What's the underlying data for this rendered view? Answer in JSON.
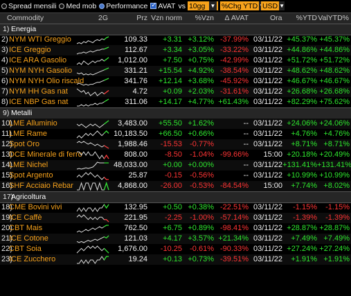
{
  "toolbar": {
    "items": [
      {
        "type": "radio",
        "label": "Spread mensili",
        "on": false
      },
      {
        "type": "radio",
        "label": "Med mob",
        "on": false
      },
      {
        "type": "radio",
        "label": "Performance",
        "on": true
      },
      {
        "type": "check",
        "label": "AVAT",
        "on": true
      }
    ],
    "vs_label": "vs",
    "period_value": "10gg",
    "chg_value": "%Chg YTD",
    "currency_value": "USD"
  },
  "columns": [
    "Commodity",
    "2G",
    "Prz",
    "Vzn norm",
    "%Vzn",
    "Δ AVAT",
    "Ora",
    "%YTD",
    "ValYTD%"
  ],
  "sections": [
    {
      "num": "1)",
      "name": "Energia",
      "rows": [
        {
          "num": "2)",
          "name": "NYM WTI Greggio",
          "prz": "109.33",
          "vzn": "+3.31",
          "pct": "+3.12%",
          "avat": "-37.99%",
          "ora": "03/11/22",
          "ytd": "+45.37%",
          "val": "+45.37%",
          "spark": [
            5,
            6,
            5,
            7,
            6,
            8,
            7,
            6,
            8,
            9,
            8,
            10,
            9,
            11,
            12
          ]
        },
        {
          "num": "3)",
          "name": "ICE Greggio",
          "prz": "112.67",
          "vzn": "+3.34",
          "pct": "+3.05%",
          "avat": "-33.22%",
          "ora": "03/11/22",
          "ytd": "+44.86%",
          "val": "+44.86%",
          "spark": [
            5,
            6,
            6,
            7,
            6,
            7,
            8,
            7,
            8,
            9,
            9,
            10,
            10,
            11,
            12
          ]
        },
        {
          "num": "4)",
          "name": "ICE ARA Gasolio",
          "prz": "1,012.00",
          "vzn": "+7.50",
          "pct": "+0.75%",
          "avat": "-42.99%",
          "ora": "03/11/22",
          "ytd": "+51.72%",
          "val": "+51.72%",
          "spark": [
            6,
            7,
            6,
            8,
            7,
            6,
            7,
            8,
            7,
            8,
            8,
            9,
            8,
            9,
            10
          ]
        },
        {
          "num": "5)",
          "name": "NYM NYH Gasolio",
          "prz": "331.21",
          "vzn": "+15.54",
          "pct": "+4.92%",
          "avat": "-38.54%",
          "ora": "03/11/22",
          "ytd": "+48.62%",
          "val": "+48.62%",
          "spark": [
            7,
            6,
            7,
            5,
            6,
            5,
            6,
            5,
            6,
            7,
            8,
            9,
            10,
            11,
            12
          ]
        },
        {
          "num": "6)",
          "name": "NYM NYH Olio riscald",
          "prz": "341.76",
          "vzn": "+12.14",
          "pct": "+3.68%",
          "avat": "-45.92%",
          "ora": "03/11/22",
          "ytd": "+46.67%",
          "val": "+46.67%",
          "spark": [
            6,
            7,
            6,
            5,
            6,
            5,
            6,
            6,
            7,
            8,
            8,
            9,
            10,
            11,
            12
          ]
        },
        {
          "num": "7)",
          "name": "NYM HH Gas nat",
          "prz": "4.72",
          "vzn": "+0.09",
          "pct": "+2.03%",
          "avat": "-31.61%",
          "ora": "03/11/22",
          "ytd": "+26.68%",
          "val": "+26.68%",
          "spark": [
            10,
            9,
            8,
            9,
            7,
            8,
            6,
            7,
            8,
            6,
            7,
            8,
            7,
            8,
            9
          ]
        },
        {
          "num": "8)",
          "name": "ICE NBP Gas nat",
          "prz": "311.06",
          "vzn": "+14.17",
          "pct": "+4.77%",
          "avat": "+61.43%",
          "ora": "03/11/22",
          "ytd": "+82.29%",
          "val": "+75.62%",
          "spark": [
            6,
            6,
            7,
            6,
            7,
            6,
            7,
            7,
            8,
            7,
            8,
            8,
            9,
            10,
            11
          ]
        }
      ]
    },
    {
      "num": "9)",
      "name": "Metalli",
      "rows": [
        {
          "num": "10)",
          "name": "LME Alluminio",
          "prz": "3,483.00",
          "vzn": "+55.50",
          "pct": "+1.62%",
          "avat": "--",
          "ora": "03/11/22",
          "ytd": "+24.06%",
          "val": "+24.06%",
          "spark": [
            8,
            7,
            8,
            7,
            6,
            7,
            8,
            7,
            8,
            7,
            6,
            7,
            8,
            9,
            10
          ]
        },
        {
          "num": "11)",
          "name": "LME Rame",
          "prz": "10,183.50",
          "vzn": "+66.50",
          "pct": "+0.66%",
          "avat": "--",
          "ora": "03/11/22",
          "ytd": "+4.76%",
          "val": "+4.76%",
          "spark": [
            7,
            8,
            7,
            8,
            9,
            8,
            9,
            8,
            9,
            10,
            9,
            8,
            9,
            10,
            9
          ]
        },
        {
          "num": "12)",
          "name": "Spot Oro",
          "prz": "1,988.46",
          "vzn": "-15.53",
          "pct": "-0.77%",
          "avat": "--",
          "ora": "03/11/22",
          "ytd": "+8.71%",
          "val": "+8.71%",
          "spark": [
            10,
            11,
            10,
            11,
            10,
            9,
            10,
            9,
            8,
            9,
            8,
            7,
            8,
            7,
            6
          ]
        },
        {
          "num": "13)",
          "name": "DCE Minerale di ferro",
          "prz": "808.00",
          "vzn": "-8.50",
          "pct": "-1.04%",
          "avat": "-99.66%",
          "ora": "15:00",
          "ytd": "+20.18%",
          "val": "+20.49%",
          "spark": [
            9,
            9,
            8,
            9,
            8,
            9,
            8,
            8,
            9,
            8,
            7,
            8,
            7,
            8,
            7
          ]
        },
        {
          "num": "14)",
          "name": "LME Nichel",
          "prz": "48,033.00",
          "vzn": "+0.00",
          "pct": "+0.00%",
          "avat": "--",
          "ora": "03/11/22",
          "ytd": "+131.41%",
          "val": "+131.41%",
          "spark": [
            3,
            4,
            3,
            4,
            5,
            4,
            5,
            6,
            9,
            13,
            12,
            12,
            12,
            12,
            12
          ]
        },
        {
          "num": "15)",
          "name": "Spot Argento",
          "prz": "25.87",
          "vzn": "-0.15",
          "pct": "-0.56%",
          "avat": "--",
          "ora": "03/11/22",
          "ytd": "+10.99%",
          "val": "+10.99%",
          "spark": [
            9,
            10,
            9,
            10,
            11,
            10,
            11,
            10,
            9,
            10,
            9,
            8,
            9,
            8,
            8
          ]
        },
        {
          "num": "16)",
          "name": "SHF Acciaio Rebar",
          "prz": "4,868.00",
          "vzn": "-26.00",
          "pct": "-0.53%",
          "avat": "-84.54%",
          "ora": "15:00",
          "ytd": "+7.74%",
          "val": "+8.02%",
          "spark": [
            8,
            8,
            9,
            8,
            9,
            9,
            8,
            9,
            9,
            8,
            9,
            8,
            8,
            9,
            8
          ]
        }
      ]
    },
    {
      "num": "17)",
      "name": "Agricoltura",
      "rows": [
        {
          "num": "18)",
          "name": "CME Bovini vivi",
          "prz": "132.95",
          "vzn": "+0.50",
          "pct": "+0.38%",
          "avat": "-22.51%",
          "ora": "03/11/22",
          "ytd": "-1.15%",
          "val": "-1.15%",
          "spark": [
            8,
            9,
            8,
            9,
            8,
            9,
            9,
            8,
            9,
            8,
            9,
            9,
            10,
            9,
            10
          ]
        },
        {
          "num": "19)",
          "name": "ICE Caffè",
          "prz": "221.95",
          "vzn": "-2.25",
          "pct": "-1.00%",
          "avat": "-57.14%",
          "ora": "03/11/22",
          "ytd": "-1.39%",
          "val": "-1.39%",
          "spark": [
            9,
            10,
            9,
            10,
            9,
            8,
            9,
            8,
            9,
            8,
            9,
            9,
            8,
            8,
            7
          ]
        },
        {
          "num": "20)",
          "name": "CBT Mais",
          "prz": "762.50",
          "vzn": "+6.75",
          "pct": "+0.89%",
          "avat": "-98.41%",
          "ora": "03/11/22",
          "ytd": "+28.87%",
          "val": "+28.87%",
          "spark": [
            6,
            7,
            6,
            7,
            8,
            7,
            8,
            9,
            8,
            9,
            10,
            9,
            10,
            11,
            11
          ]
        },
        {
          "num": "21)",
          "name": "ICE Cotone",
          "prz": "121.03",
          "vzn": "+4.17",
          "pct": "+3.57%",
          "avat": "+21.34%",
          "ora": "03/11/22",
          "ytd": "+7.49%",
          "val": "+7.49%",
          "spark": [
            7,
            6,
            7,
            6,
            7,
            8,
            7,
            8,
            9,
            8,
            9,
            10,
            11,
            10,
            12
          ]
        },
        {
          "num": "22)",
          "name": "CBT Soia",
          "prz": "1,676.00",
          "vzn": "-10.25",
          "pct": "-0.61%",
          "avat": "-90.33%",
          "ora": "03/11/22",
          "ytd": "+27.24%",
          "val": "+27.24%",
          "spark": [
            7,
            8,
            9,
            8,
            9,
            10,
            9,
            10,
            9,
            10,
            9,
            8,
            9,
            8,
            7
          ]
        },
        {
          "num": "23)",
          "name": "ICE Zucchero",
          "prz": "19.24",
          "vzn": "+0.13",
          "pct": "+0.73%",
          "avat": "-39.51%",
          "ora": "03/11/22",
          "ytd": "+1.91%",
          "val": "+1.91%",
          "spark": [
            8,
            8,
            9,
            8,
            9,
            8,
            9,
            9,
            8,
            9,
            9,
            10,
            9,
            10,
            10
          ]
        }
      ]
    }
  ]
}
